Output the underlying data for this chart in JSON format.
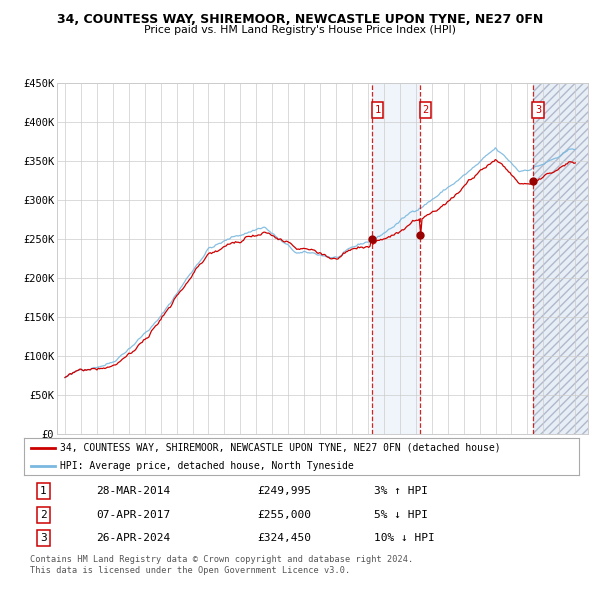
{
  "title": "34, COUNTESS WAY, SHIREMOOR, NEWCASTLE UPON TYNE, NE27 0FN",
  "subtitle": "Price paid vs. HM Land Registry's House Price Index (HPI)",
  "legend_line1": "34, COUNTESS WAY, SHIREMOOR, NEWCASTLE UPON TYNE, NE27 0FN (detached house)",
  "legend_line2": "HPI: Average price, detached house, North Tyneside",
  "transactions": [
    {
      "num": "1",
      "date": "28-MAR-2014",
      "date_dec": 2014.24,
      "price": 249995,
      "price_str": "£249,995",
      "pct": "3% ↑ HPI"
    },
    {
      "num": "2",
      "date": "07-APR-2017",
      "date_dec": 2017.27,
      "price": 255000,
      "price_str": "£255,000",
      "pct": "5% ↓ HPI"
    },
    {
      "num": "3",
      "date": "26-APR-2024",
      "date_dec": 2024.32,
      "price": 324450,
      "price_str": "£324,450",
      "pct": "10% ↓ HPI"
    }
  ],
  "ylabel_ticks": [
    "£0",
    "£50K",
    "£100K",
    "£150K",
    "£200K",
    "£250K",
    "£300K",
    "£350K",
    "£400K",
    "£450K"
  ],
  "ylim": [
    0,
    450000
  ],
  "xlim_start": 1994.5,
  "xlim_end": 2027.8,
  "hpi_color": "#7ab8df",
  "price_color": "#cc0000",
  "dot_color": "#990000",
  "dashed_color": "#cc0000",
  "shade_color": "#ccdff0",
  "footer_line1": "Contains HM Land Registry data © Crown copyright and database right 2024.",
  "footer_line2": "This data is licensed under the Open Government Licence v3.0."
}
